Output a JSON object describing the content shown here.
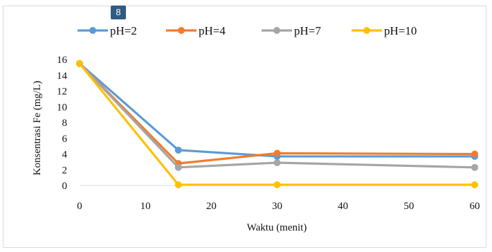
{
  "badge": "8",
  "chart_data": {
    "type": "line",
    "title": "",
    "xlabel": "Waktu (menit)",
    "ylabel": "Konsentrasi Fe (mg/L)",
    "x": [
      0,
      15,
      30,
      60
    ],
    "xlim": [
      0,
      60
    ],
    "ylim": [
      0,
      16
    ],
    "xticks": [
      0,
      10,
      20,
      30,
      40,
      50,
      60
    ],
    "yticks": [
      0,
      2,
      4,
      6,
      8,
      10,
      12,
      14,
      16
    ],
    "grid": false,
    "legend_position": "top",
    "series": [
      {
        "name": "pH=2",
        "color": "#5b9bd5",
        "values": [
          15.5,
          4.5,
          3.7,
          3.7
        ]
      },
      {
        "name": "pH=4",
        "color": "#ed7d31",
        "values": [
          15.5,
          2.8,
          4.1,
          4.0
        ]
      },
      {
        "name": "pH=7",
        "color": "#a5a5a5",
        "values": [
          15.5,
          2.3,
          2.9,
          2.3
        ]
      },
      {
        "name": "pH=10",
        "color": "#ffc000",
        "values": [
          15.5,
          0.1,
          0.1,
          0.1
        ]
      }
    ]
  }
}
